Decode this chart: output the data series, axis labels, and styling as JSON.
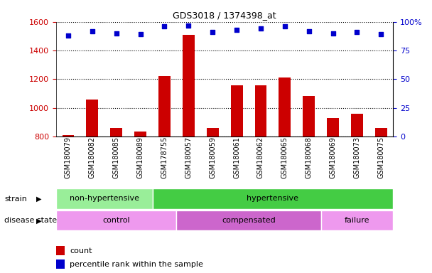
{
  "title": "GDS3018 / 1374398_at",
  "samples": [
    "GSM180079",
    "GSM180082",
    "GSM180085",
    "GSM180089",
    "GSM178755",
    "GSM180057",
    "GSM180059",
    "GSM180061",
    "GSM180062",
    "GSM180065",
    "GSM180068",
    "GSM180069",
    "GSM180073",
    "GSM180075"
  ],
  "counts": [
    810,
    1060,
    860,
    835,
    1220,
    1510,
    860,
    1155,
    1155,
    1210,
    1085,
    930,
    960,
    860
  ],
  "percentile_ranks": [
    88,
    92,
    90,
    89,
    96,
    97,
    91,
    93,
    94,
    96,
    92,
    90,
    91,
    89
  ],
  "ylim_left": [
    800,
    1600
  ],
  "ylim_right": [
    0,
    100
  ],
  "yticks_left": [
    800,
    1000,
    1200,
    1400,
    1600
  ],
  "yticks_right": [
    0,
    25,
    50,
    75,
    100
  ],
  "bar_color": "#cc0000",
  "dot_color": "#0000cc",
  "strain_groups": [
    {
      "label": "non-hypertensive",
      "start": 0,
      "end": 4,
      "color": "#99ee99"
    },
    {
      "label": "hypertensive",
      "start": 4,
      "end": 14,
      "color": "#44cc44"
    }
  ],
  "disease_groups": [
    {
      "label": "control",
      "start": 0,
      "end": 5,
      "color": "#ee99ee"
    },
    {
      "label": "compensated",
      "start": 5,
      "end": 11,
      "color": "#cc66cc"
    },
    {
      "label": "failure",
      "start": 11,
      "end": 14,
      "color": "#ee99ee"
    }
  ],
  "legend_count_label": "count",
  "legend_percentile_label": "percentile rank within the sample",
  "xlabel_strain": "strain",
  "xlabel_disease": "disease state",
  "background_color": "#ffffff",
  "tick_color_left": "#cc0000",
  "tick_color_right": "#0000cc"
}
